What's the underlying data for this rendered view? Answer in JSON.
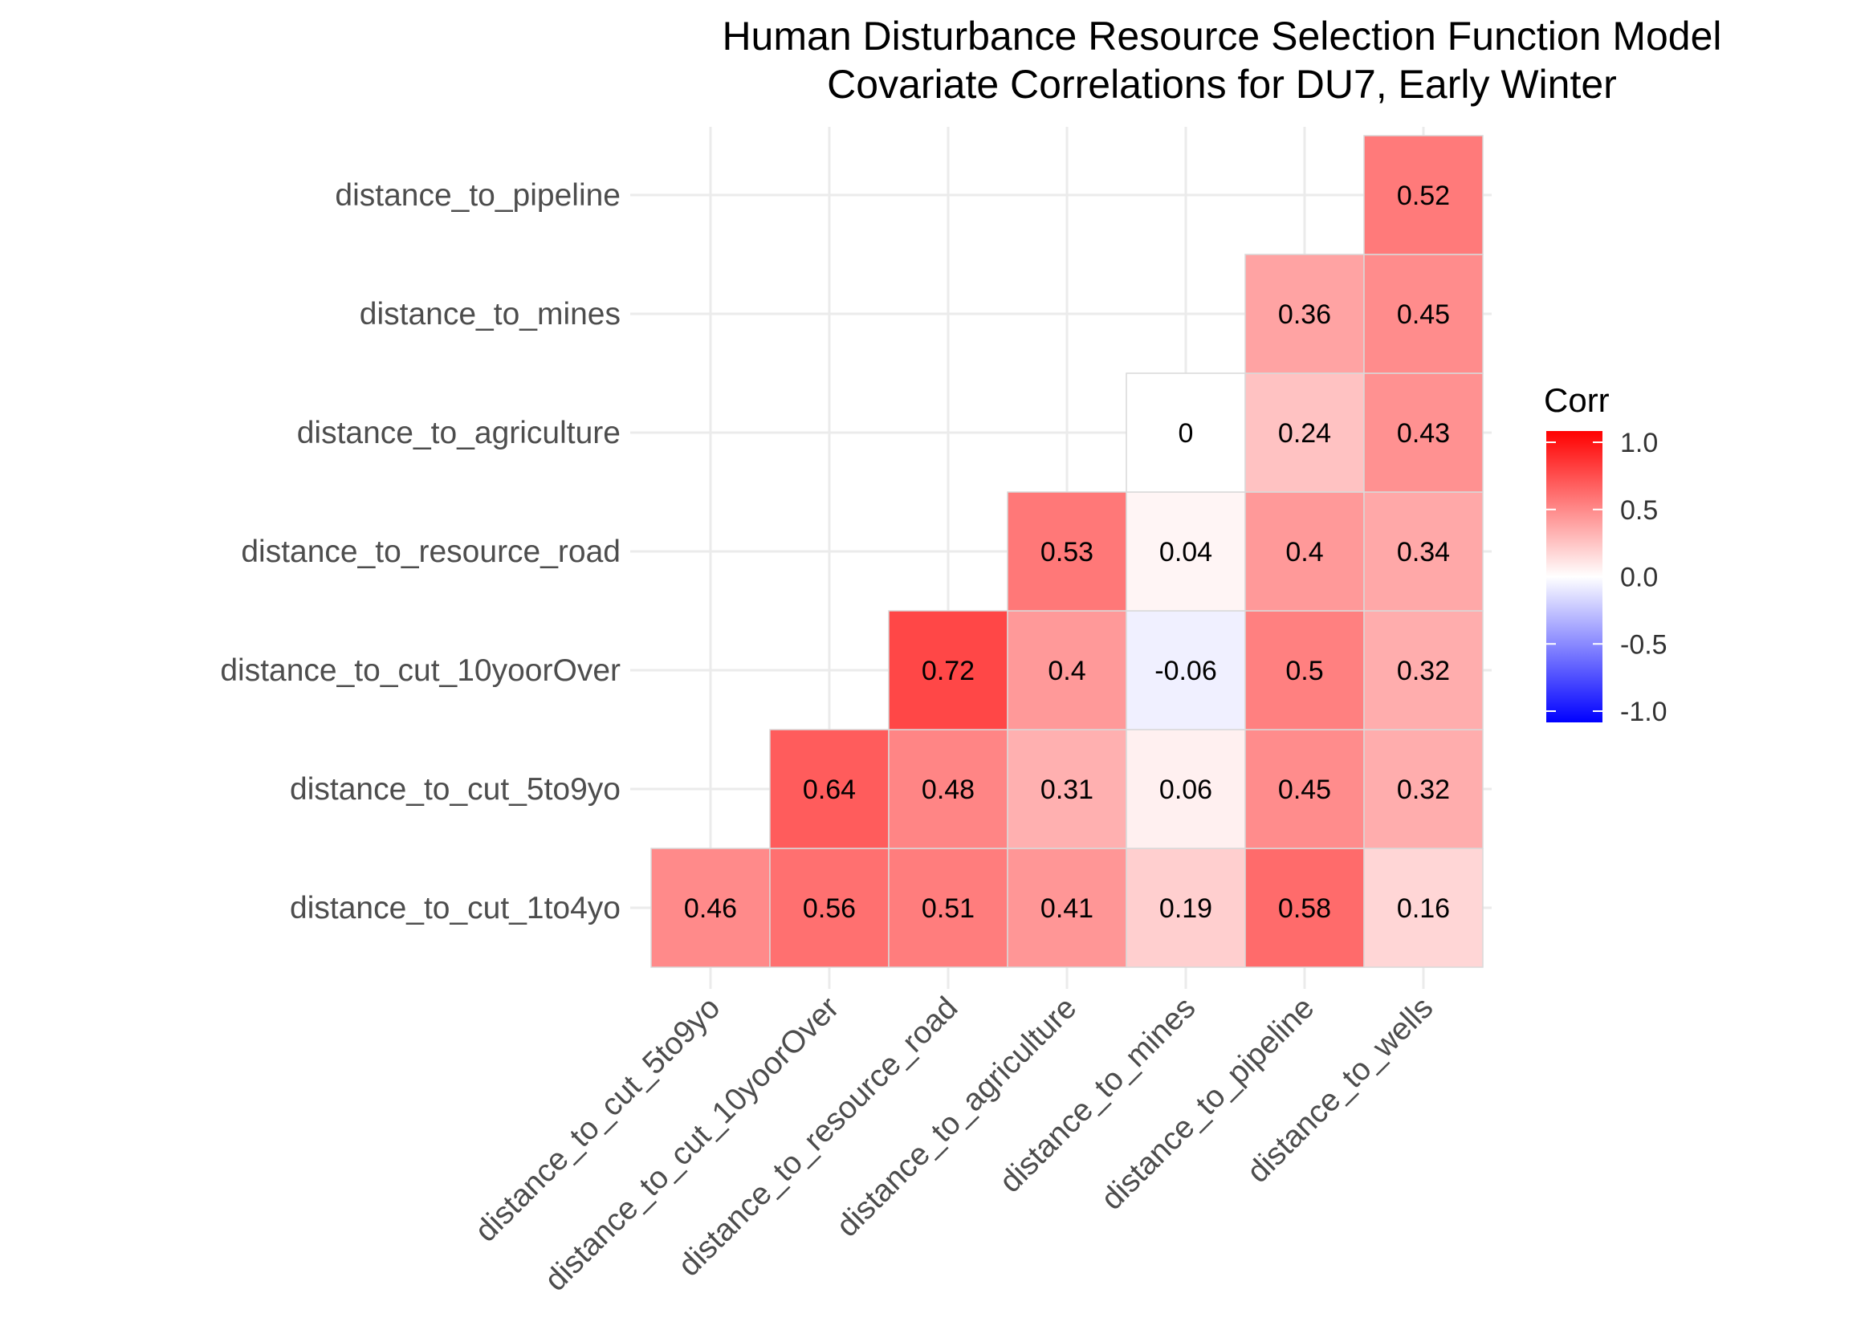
{
  "chart_data": {
    "type": "heatmap",
    "title": "Human Disturbance Resource Selection Function Model",
    "subtitle": "Covariate Correlations for DU7, Early Winter",
    "x_categories": [
      "distance_to_cut_5to9yo",
      "distance_to_cut_10yoorOver",
      "distance_to_resource_road",
      "distance_to_agriculture",
      "distance_to_mines",
      "distance_to_pipeline",
      "distance_to_wells"
    ],
    "y_categories": [
      "distance_to_cut_1to4yo",
      "distance_to_cut_5to9yo",
      "distance_to_cut_10yoorOver",
      "distance_to_resource_road",
      "distance_to_agriculture",
      "distance_to_mines",
      "distance_to_pipeline"
    ],
    "cells": [
      {
        "x": "distance_to_cut_5to9yo",
        "y": "distance_to_cut_1to4yo",
        "value": 0.46
      },
      {
        "x": "distance_to_cut_10yoorOver",
        "y": "distance_to_cut_1to4yo",
        "value": 0.56
      },
      {
        "x": "distance_to_resource_road",
        "y": "distance_to_cut_1to4yo",
        "value": 0.51
      },
      {
        "x": "distance_to_agriculture",
        "y": "distance_to_cut_1to4yo",
        "value": 0.41
      },
      {
        "x": "distance_to_mines",
        "y": "distance_to_cut_1to4yo",
        "value": 0.19
      },
      {
        "x": "distance_to_pipeline",
        "y": "distance_to_cut_1to4yo",
        "value": 0.58
      },
      {
        "x": "distance_to_wells",
        "y": "distance_to_cut_1to4yo",
        "value": 0.16
      },
      {
        "x": "distance_to_cut_10yoorOver",
        "y": "distance_to_cut_5to9yo",
        "value": 0.64
      },
      {
        "x": "distance_to_resource_road",
        "y": "distance_to_cut_5to9yo",
        "value": 0.48
      },
      {
        "x": "distance_to_agriculture",
        "y": "distance_to_cut_5to9yo",
        "value": 0.31
      },
      {
        "x": "distance_to_mines",
        "y": "distance_to_cut_5to9yo",
        "value": 0.06
      },
      {
        "x": "distance_to_pipeline",
        "y": "distance_to_cut_5to9yo",
        "value": 0.45
      },
      {
        "x": "distance_to_wells",
        "y": "distance_to_cut_5to9yo",
        "value": 0.32
      },
      {
        "x": "distance_to_resource_road",
        "y": "distance_to_cut_10yoorOver",
        "value": 0.72
      },
      {
        "x": "distance_to_agriculture",
        "y": "distance_to_cut_10yoorOver",
        "value": 0.4
      },
      {
        "x": "distance_to_mines",
        "y": "distance_to_cut_10yoorOver",
        "value": -0.06
      },
      {
        "x": "distance_to_pipeline",
        "y": "distance_to_cut_10yoorOver",
        "value": 0.5
      },
      {
        "x": "distance_to_wells",
        "y": "distance_to_cut_10yoorOver",
        "value": 0.32
      },
      {
        "x": "distance_to_agriculture",
        "y": "distance_to_resource_road",
        "value": 0.53
      },
      {
        "x": "distance_to_mines",
        "y": "distance_to_resource_road",
        "value": 0.04
      },
      {
        "x": "distance_to_pipeline",
        "y": "distance_to_resource_road",
        "value": 0.4
      },
      {
        "x": "distance_to_wells",
        "y": "distance_to_resource_road",
        "value": 0.34
      },
      {
        "x": "distance_to_mines",
        "y": "distance_to_agriculture",
        "value": 0
      },
      {
        "x": "distance_to_pipeline",
        "y": "distance_to_agriculture",
        "value": 0.24
      },
      {
        "x": "distance_to_wells",
        "y": "distance_to_agriculture",
        "value": 0.43
      },
      {
        "x": "distance_to_pipeline",
        "y": "distance_to_mines",
        "value": 0.36
      },
      {
        "x": "distance_to_wells",
        "y": "distance_to_mines",
        "value": 0.45
      },
      {
        "x": "distance_to_wells",
        "y": "distance_to_pipeline",
        "value": 0.52
      }
    ],
    "color_scale": {
      "low": "#0000ff",
      "mid": "#ffffff",
      "high": "#ff0000",
      "limits": [
        -1,
        1
      ]
    },
    "legend": {
      "title": "Corr",
      "position": "right",
      "ticks": [
        "1.0",
        "0.5",
        "0.0",
        "-0.5",
        "-1.0"
      ]
    },
    "grid": true
  }
}
